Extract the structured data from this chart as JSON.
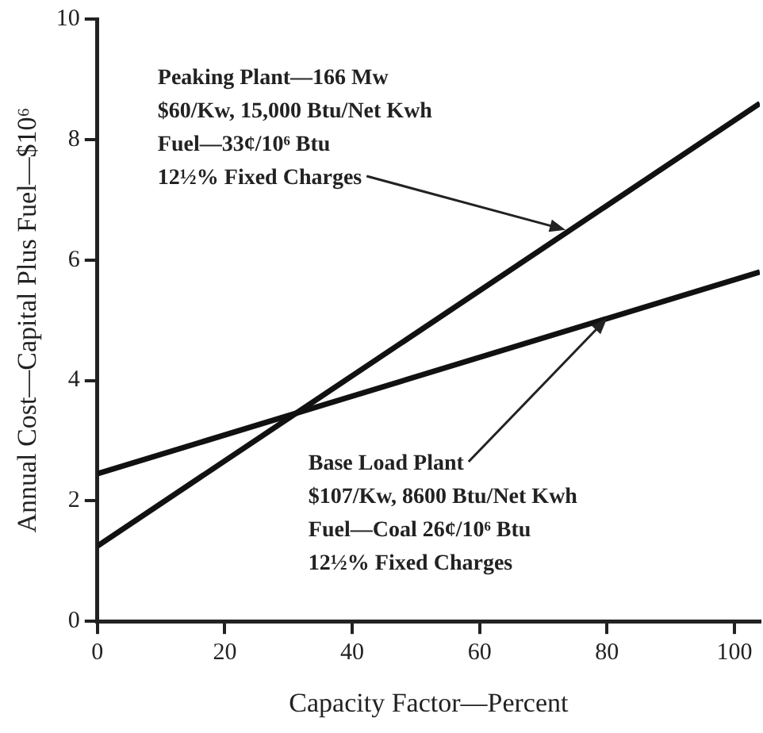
{
  "chart_data": {
    "type": "line",
    "xlabel": "Capacity Factor—Percent",
    "ylabel": "Annual Cost—Capital Plus Fuel—$10⁶",
    "x": [
      0,
      104
    ],
    "series": [
      {
        "color": "#111111",
        "values": [
          1.25,
          8.6
        ]
      },
      {
        "color": "#111111",
        "values": [
          2.45,
          5.8
        ]
      }
    ],
    "xlim": [
      0,
      104
    ],
    "xticks": [
      0,
      20,
      40,
      60,
      80,
      100
    ],
    "ylim": [
      0,
      10
    ],
    "yticks": [
      0,
      2,
      4,
      6,
      8,
      10
    ],
    "grid": false,
    "legend": false,
    "marker": "none",
    "line_style": "solid",
    "annotations": [
      {
        "text": "Peaking Plant—166 Mw\n$60/Kw, 15,000 Btu/Net Kwh\nFuel—33¢/10⁶ Btu\n12½% Fixed Charges",
        "x": 73.5,
        "y": 6.5
      },
      {
        "text": "Base Load Plant\n$107/Kw, 8600 Btu/Net Kwh\nFuel—Coal 26¢/10⁶ Btu\n12½% Fixed Charges",
        "x": 80,
        "y": 5.03
      }
    ]
  }
}
